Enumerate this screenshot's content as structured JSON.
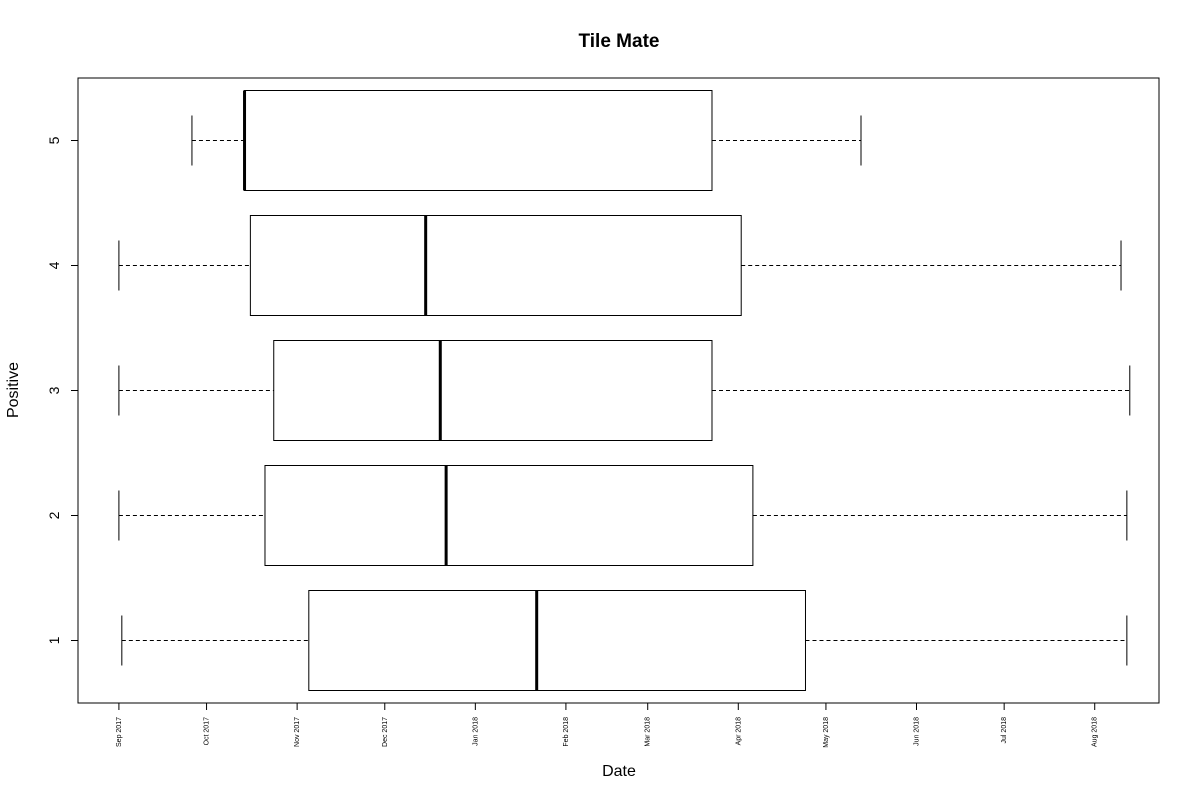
{
  "chart_data": {
    "type": "boxplot",
    "orientation": "horizontal",
    "title": "Tile Mate",
    "xlabel": "Date",
    "ylabel": "Positive",
    "x_axis_type": "date",
    "xlim": [
      "2017-08-18",
      "2018-08-23"
    ],
    "ylim": [
      0.5,
      5.5
    ],
    "x_ticks": [
      "2017-09-01",
      "2017-10-01",
      "2017-11-01",
      "2017-12-01",
      "2018-01-01",
      "2018-02-01",
      "2018-03-01",
      "2018-04-01",
      "2018-05-01",
      "2018-06-01",
      "2018-07-01",
      "2018-08-01"
    ],
    "x_tick_labels": [
      "Sep 2017",
      "Oct 2017",
      "Nov 2017",
      "Dec 2017",
      "Jan 2018",
      "Feb 2018",
      "Mar 2018",
      "Apr 2018",
      "May 2018",
      "Jun 2018",
      "Jul 2018",
      "Aug 2018"
    ],
    "categories": [
      "1",
      "2",
      "3",
      "4",
      "5"
    ],
    "boxes": [
      {
        "category": "1",
        "whisker_low": "2017-09-02",
        "q1": "2017-11-05",
        "median": "2018-01-22",
        "q3": "2018-04-24",
        "whisker_high": "2018-08-12"
      },
      {
        "category": "2",
        "whisker_low": "2017-09-01",
        "q1": "2017-10-21",
        "median": "2017-12-22",
        "q3": "2018-04-06",
        "whisker_high": "2018-08-12"
      },
      {
        "category": "3",
        "whisker_low": "2017-09-01",
        "q1": "2017-10-24",
        "median": "2017-12-20",
        "q3": "2018-03-23",
        "whisker_high": "2018-08-13"
      },
      {
        "category": "4",
        "whisker_low": "2017-09-01",
        "q1": "2017-10-16",
        "median": "2017-12-15",
        "q3": "2018-04-02",
        "whisker_high": "2018-08-10"
      },
      {
        "category": "5",
        "whisker_low": "2017-09-26",
        "q1": "2017-10-14",
        "median": "2017-10-14",
        "q3": "2018-03-23",
        "whisker_high": "2018-05-13"
      }
    ],
    "grid": false,
    "legend": "none"
  }
}
